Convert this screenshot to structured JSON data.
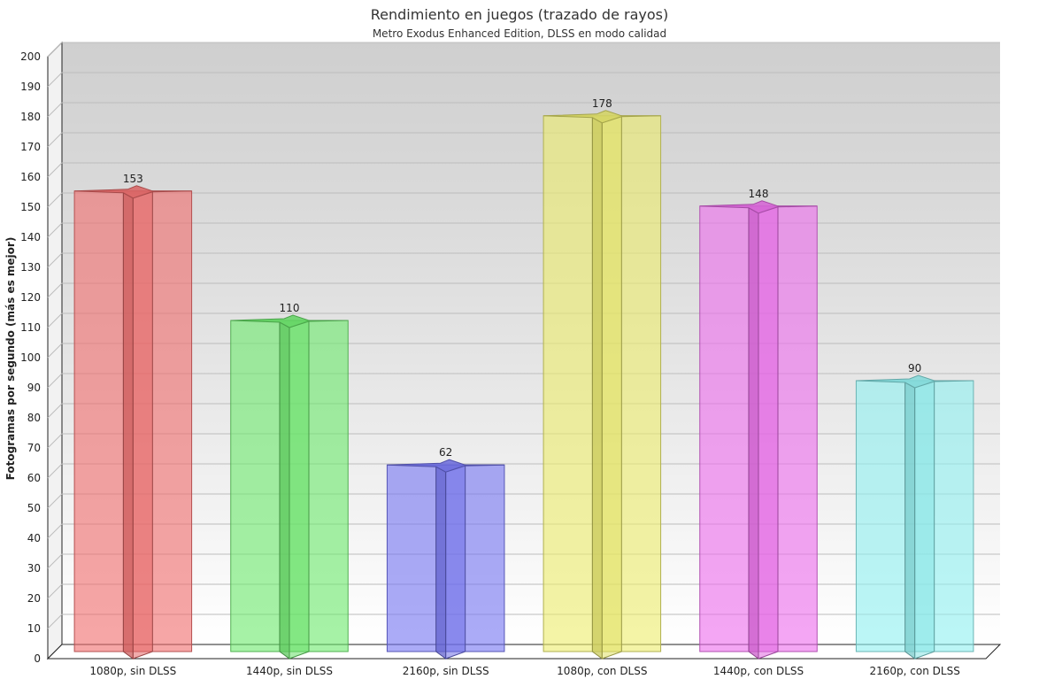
{
  "chart_data": {
    "type": "bar",
    "title": "Rendimiento en juegos (trazado de rayos)",
    "subtitle": "Metro Exodus Enhanced Edition, DLSS en modo calidad",
    "ylabel": "Fotogramas por segundo (más es mejor)",
    "xlabel": "",
    "ylim": [
      0,
      200
    ],
    "ytick_step": 10,
    "grid": true,
    "legend": "none",
    "categories": [
      "1080p, sin DLSS",
      "1440p, sin DLSS",
      "2160p, sin DLSS",
      "1080p, con DLSS",
      "1440p, con DLSS",
      "2160p, con DLSS"
    ],
    "values": [
      153,
      110,
      62,
      178,
      148,
      90
    ],
    "data_labels": [
      "153",
      "110",
      "62",
      "178",
      "148",
      "90"
    ],
    "colors": [
      "#f06b6b",
      "#6bea6b",
      "#7373f2",
      "#ecec6b",
      "#ec6bec",
      "#8ef0f0"
    ]
  }
}
